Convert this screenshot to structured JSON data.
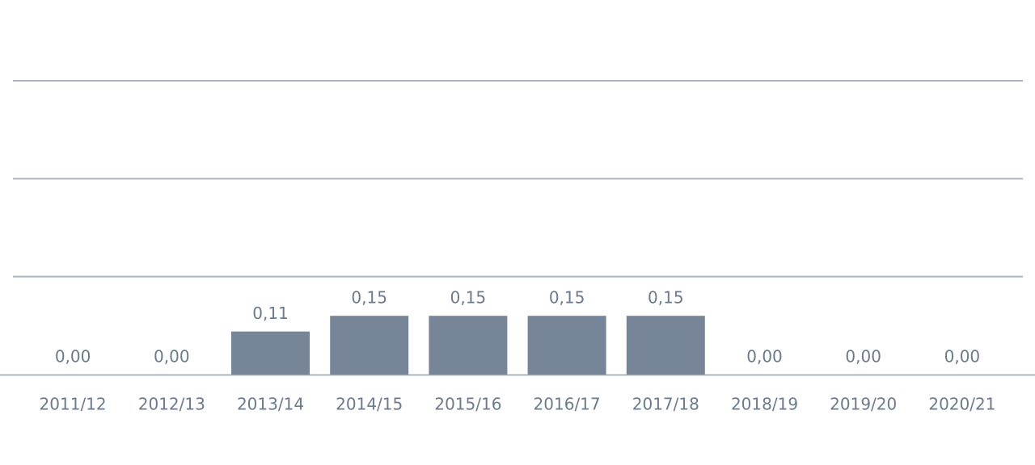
{
  "chart_data": {
    "type": "bar",
    "categories": [
      "2011/12",
      "2012/13",
      "2013/14",
      "2014/15",
      "2015/16",
      "2016/17",
      "2017/18",
      "2018/19",
      "2019/20",
      "2020/21"
    ],
    "values": [
      0,
      0,
      0.11,
      0.15,
      0.15,
      0.15,
      0.15,
      0,
      0,
      0
    ],
    "value_labels": [
      "0,00",
      "0,00",
      "0,11",
      "0,15",
      "0,15",
      "0,15",
      "0,15",
      "0,00",
      "0,00",
      "0,00"
    ],
    "color": "#778599",
    "ylim": [
      0,
      0.75
    ],
    "yticks": [
      0.25,
      0.5,
      0.75
    ],
    "grid": true
  }
}
